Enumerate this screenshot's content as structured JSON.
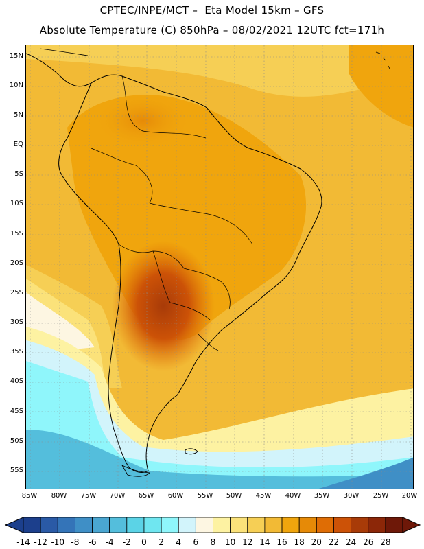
{
  "header": {
    "line1": "CPTEC/INPE/MCT –  Eta Model 15km – GFS",
    "line2": "Absolute Temperature (C) 850hPa – 08/02/2021 12UTC fct=171h"
  },
  "axes": {
    "lat_labels": [
      "15N",
      "10N",
      "5N",
      "EQ",
      "5S",
      "10S",
      "15S",
      "20S",
      "25S",
      "30S",
      "35S",
      "40S",
      "45S",
      "50S",
      "55S"
    ],
    "lon_labels": [
      "85W",
      "80W",
      "75W",
      "70W",
      "65W",
      "60W",
      "55W",
      "50W",
      "45W",
      "40W",
      "35W",
      "30W",
      "25W",
      "20W"
    ]
  },
  "legend": {
    "colors": [
      "#1c3f8c",
      "#2a5aa6",
      "#3474b8",
      "#3f8fc6",
      "#4aa6d1",
      "#54bedc",
      "#5bd3e6",
      "#6fe6f0",
      "#8ff6fb",
      "#d2f4fb",
      "#fdf6e2",
      "#fdf2a2",
      "#fbe27a",
      "#f6cf55",
      "#f2ba35",
      "#f0a50d",
      "#e68a07",
      "#df6d05",
      "#cc5207",
      "#a83b08",
      "#8c2708",
      "#6e1808"
    ],
    "labels": [
      "-14",
      "-12",
      "-10",
      "-8",
      "-6",
      "-4",
      "-2",
      "0",
      "2",
      "4",
      "6",
      "8",
      "10",
      "12",
      "14",
      "16",
      "18",
      "20",
      "22",
      "24",
      "26",
      "28"
    ]
  }
}
